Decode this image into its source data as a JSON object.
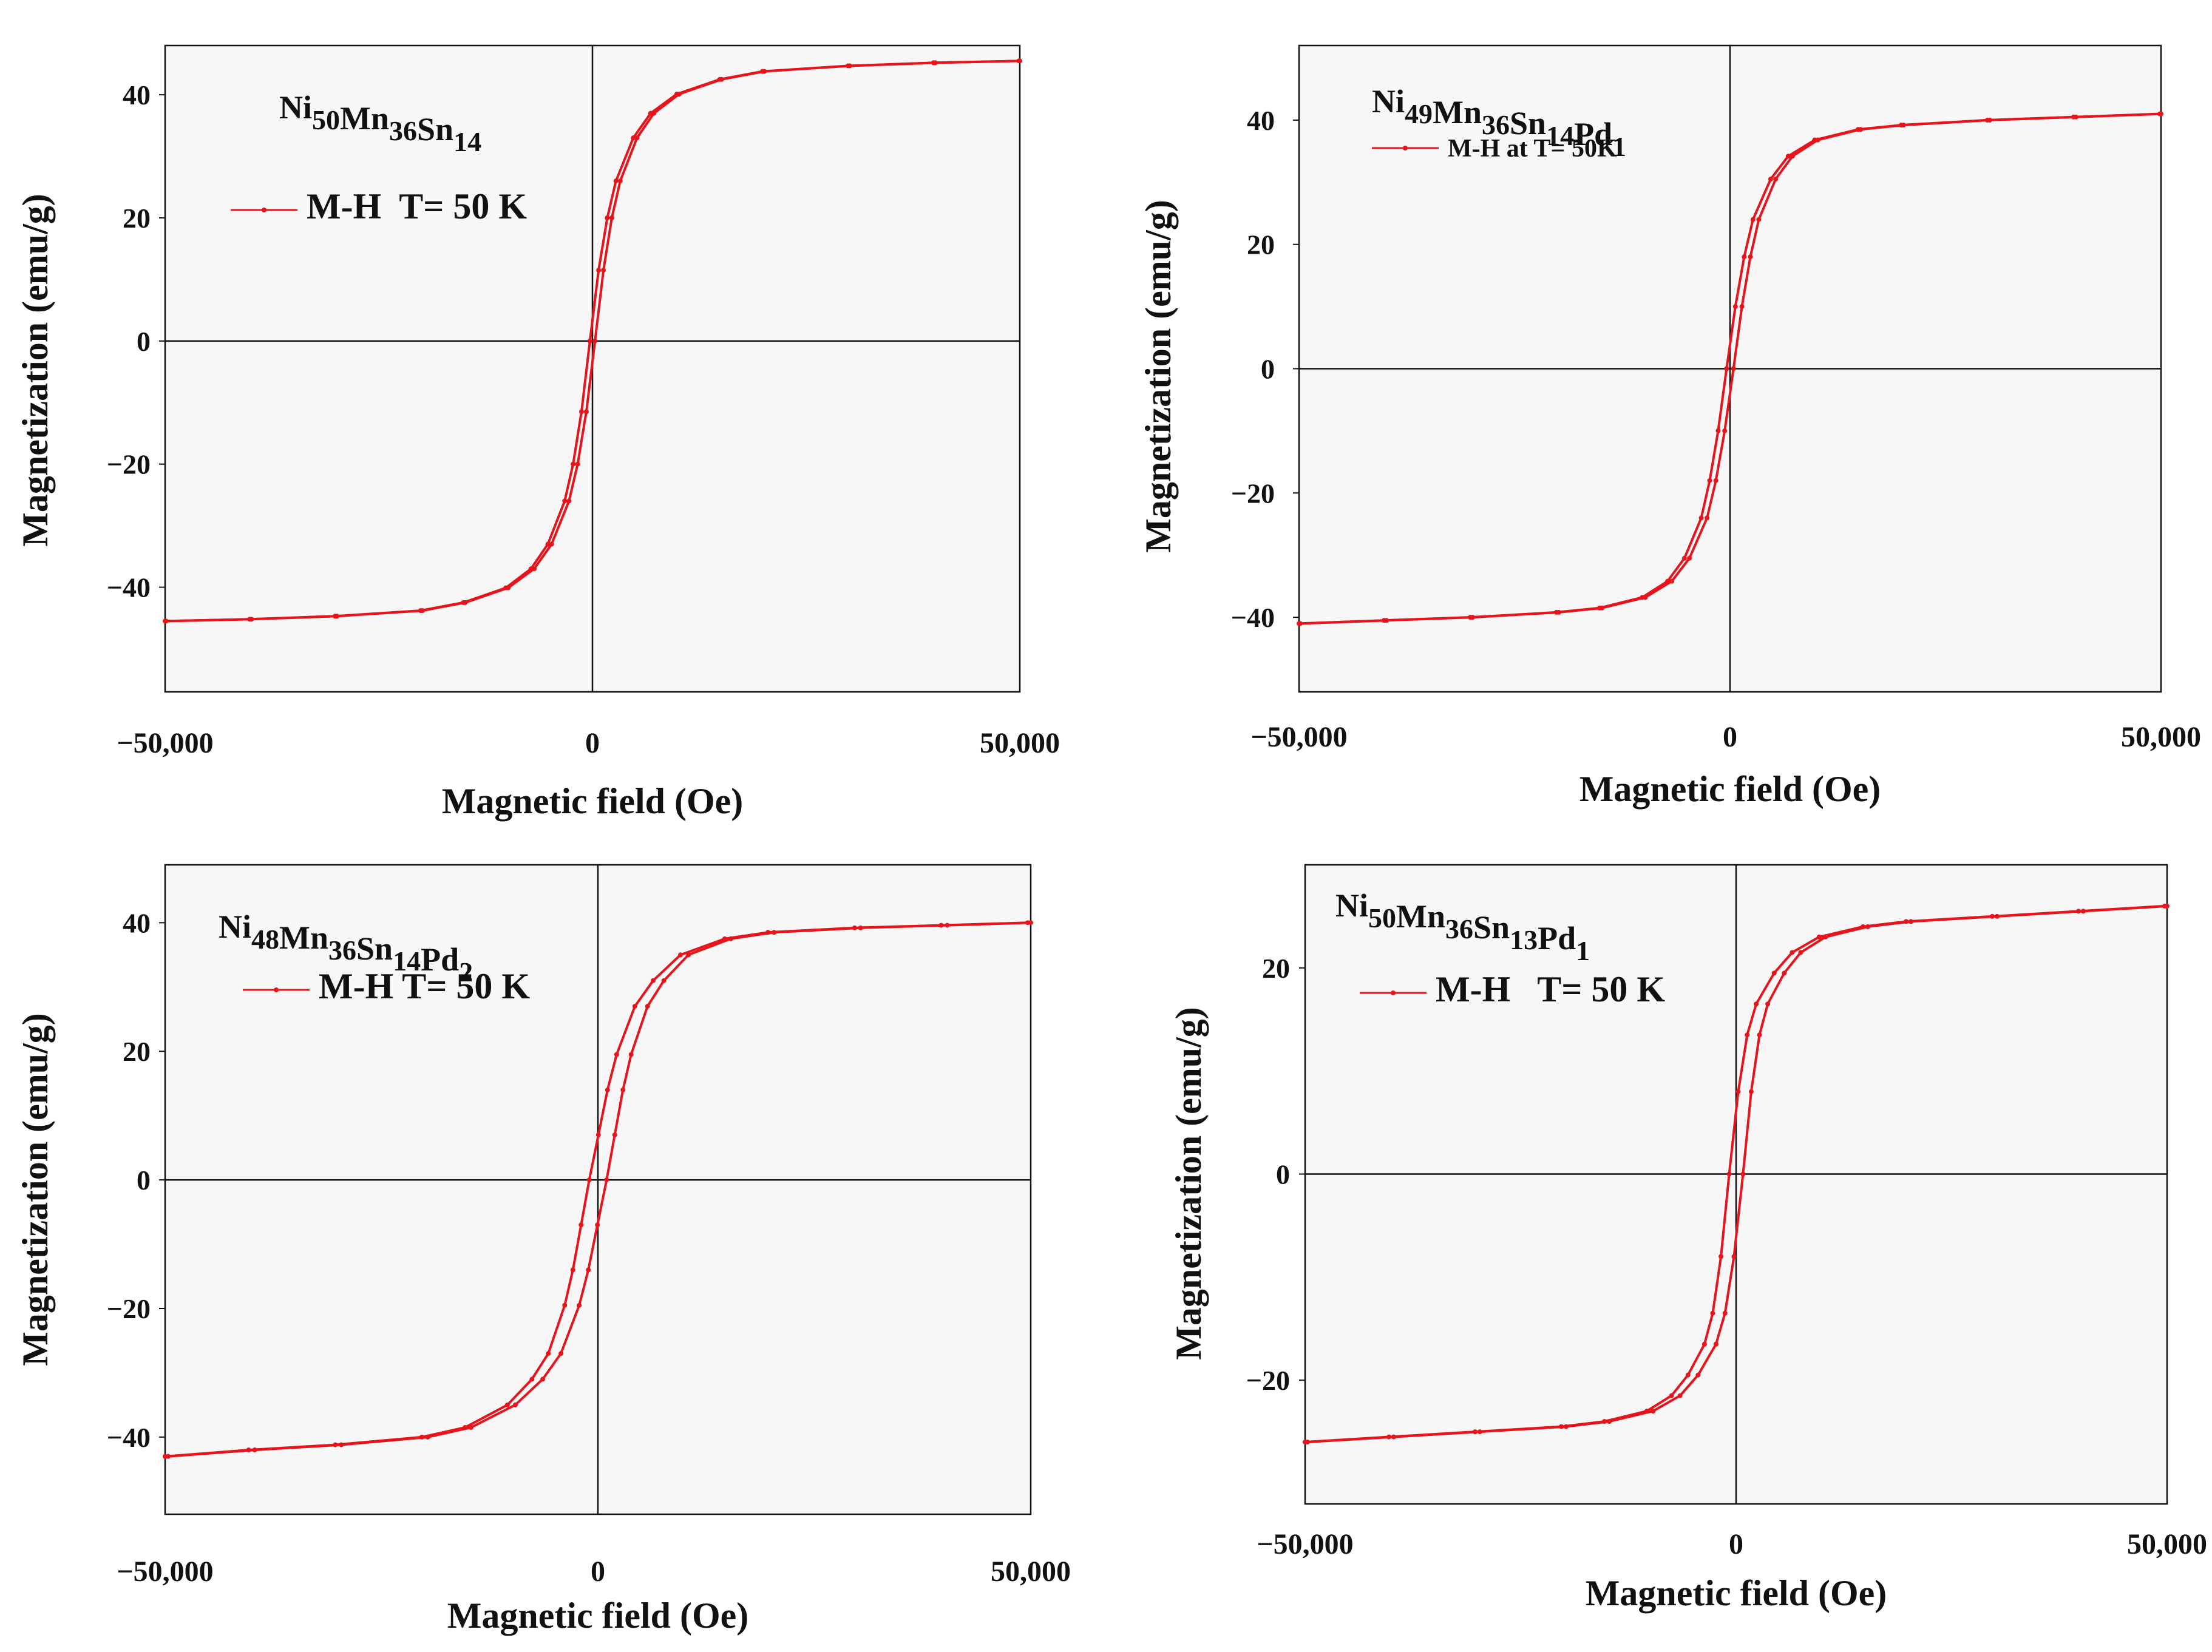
{
  "figure": {
    "panel_count": 4,
    "line_color": "#e8141c",
    "axis_color": "#111111",
    "background": "#ffffff"
  },
  "chart_data": [
    {
      "type": "line",
      "title_parts": [
        [
          "Ni",
          "50"
        ],
        [
          "Mn",
          "36"
        ],
        [
          "Sn",
          "14"
        ]
      ],
      "legend": "M-H  T= 50 K",
      "xlabel": "Magnetic field (Oe)",
      "ylabel": "Magnetization (emu/g)",
      "xlim": [
        -50000,
        50000
      ],
      "ylim": [
        -57,
        48
      ],
      "xticks": [
        -50000,
        0,
        50000
      ],
      "xtick_labels": [
        "−50,000",
        "0",
        "50,000"
      ],
      "yticks": [
        -40,
        -20,
        0,
        20,
        40
      ],
      "ytick_labels": [
        "−40",
        "−20",
        "0",
        "20",
        "40"
      ],
      "grid": false,
      "series": [
        {
          "name": "M-H  T= 50 K",
          "x": [
            -50000,
            -40000,
            -30000,
            -20000,
            -15000,
            -10000,
            -7000,
            -5000,
            -3000,
            -2000,
            -1000,
            0,
            1000,
            2000,
            3000,
            5000,
            7000,
            10000,
            15000,
            20000,
            30000,
            40000,
            50000
          ],
          "y": [
            -45.5,
            -45.2,
            -44.7,
            -43.8,
            -42.5,
            -40.1,
            -37.0,
            -33.0,
            -26.0,
            -20.0,
            -11.5,
            0,
            11.5,
            20.0,
            26.0,
            33.0,
            37.0,
            40.1,
            42.5,
            43.8,
            44.7,
            45.2,
            45.5
          ],
          "coercivity_oe": 300
        }
      ]
    },
    {
      "type": "line",
      "title_parts": [
        [
          "Ni",
          "49"
        ],
        [
          "Mn",
          "36"
        ],
        [
          "Sn",
          "14"
        ],
        [
          "Pd",
          "1"
        ]
      ],
      "legend": "M-H at T= 50K",
      "xlabel": "Magnetic field (Oe)",
      "ylabel": "Magnetization (emu/g)",
      "xlim": [
        -50000,
        50000
      ],
      "ylim": [
        -52,
        52
      ],
      "xticks": [
        -50000,
        0,
        50000
      ],
      "xtick_labels": [
        "−50,000",
        "0",
        "50,000"
      ],
      "yticks": [
        -40,
        -20,
        0,
        20,
        40
      ],
      "ytick_labels": [
        "−40",
        "−20",
        "0",
        "20",
        "40"
      ],
      "grid": false,
      "series": [
        {
          "name": "M-H at T= 50K",
          "x": [
            -50000,
            -40000,
            -30000,
            -20000,
            -15000,
            -10000,
            -7000,
            -5000,
            -3000,
            -2000,
            -1000,
            0,
            1000,
            2000,
            3000,
            5000,
            7000,
            10000,
            15000,
            20000,
            30000,
            40000,
            50000
          ],
          "y": [
            -41.0,
            -40.5,
            -40.0,
            -39.2,
            -38.5,
            -36.8,
            -34.2,
            -30.5,
            -24.0,
            -18.0,
            -10.0,
            0,
            10.0,
            18.0,
            24.0,
            30.5,
            34.2,
            36.8,
            38.5,
            39.2,
            40.0,
            40.5,
            41.0
          ],
          "coercivity_oe": 400
        }
      ]
    },
    {
      "type": "line",
      "title_parts": [
        [
          "Ni",
          "48"
        ],
        [
          "Mn",
          "36"
        ],
        [
          "Sn",
          "14"
        ],
        [
          "Pd",
          "2"
        ]
      ],
      "legend": "M-H T= 50 K",
      "xlabel": "Magnetic field (Oe)",
      "ylabel": "Magnetization (emu/g)",
      "xlim": [
        -50000,
        50000
      ],
      "ylim": [
        -52,
        49
      ],
      "xticks": [
        -50000,
        0,
        50000
      ],
      "xtick_labels": [
        "−50,000",
        "0",
        "50,000"
      ],
      "yticks": [
        -40,
        -20,
        0,
        20,
        40
      ],
      "ytick_labels": [
        "−40",
        "−20",
        "0",
        "20",
        "40"
      ],
      "grid": false,
      "series": [
        {
          "name": "M-H T= 50 K",
          "x": [
            -50000,
            -40000,
            -30000,
            -20000,
            -15000,
            -10000,
            -7000,
            -5000,
            -3000,
            -2000,
            -1000,
            0,
            1000,
            2000,
            3000,
            5000,
            7000,
            10000,
            15000,
            20000,
            30000,
            40000,
            50000
          ],
          "y": [
            -43.0,
            -42.0,
            -41.2,
            -40.0,
            -38.5,
            -35.0,
            -31.0,
            -27.0,
            -19.5,
            -14.0,
            -7.0,
            0,
            7.0,
            14.0,
            19.5,
            27.0,
            31.0,
            35.0,
            37.5,
            38.5,
            39.2,
            39.6,
            40.0
          ],
          "coercivity_oe": 1000
        }
      ]
    },
    {
      "type": "line",
      "title_parts": [
        [
          "Ni",
          "50"
        ],
        [
          "Mn",
          "36"
        ],
        [
          "Sn",
          "13"
        ],
        [
          "Pd",
          "1"
        ]
      ],
      "legend": "M-H   T= 50 K",
      "xlabel": "Magnetic field (Oe)",
      "ylabel": "Magnetization (emu/g)",
      "xlim": [
        -50000,
        50000
      ],
      "ylim": [
        -32,
        30
      ],
      "xticks": [
        -50000,
        0,
        50000
      ],
      "xtick_labels": [
        "−50,000",
        "0",
        "50,000"
      ],
      "yticks": [
        -20,
        0,
        20
      ],
      "ytick_labels": [
        "−20",
        "0",
        "20"
      ],
      "grid": false,
      "series": [
        {
          "name": "M-H   T= 50 K",
          "x": [
            -50000,
            -40000,
            -30000,
            -20000,
            -15000,
            -10000,
            -7000,
            -5000,
            -3000,
            -2000,
            -1000,
            0,
            1000,
            2000,
            3000,
            5000,
            7000,
            10000,
            15000,
            20000,
            30000,
            40000,
            50000
          ],
          "y": [
            -26.0,
            -25.5,
            -25.0,
            -24.5,
            -24.0,
            -23.0,
            -21.5,
            -19.5,
            -16.5,
            -13.5,
            -8.0,
            0,
            8.0,
            13.5,
            16.5,
            19.5,
            21.5,
            23.0,
            24.0,
            24.5,
            25.0,
            25.5,
            26.0
          ],
          "coercivity_oe": 800
        }
      ]
    }
  ]
}
